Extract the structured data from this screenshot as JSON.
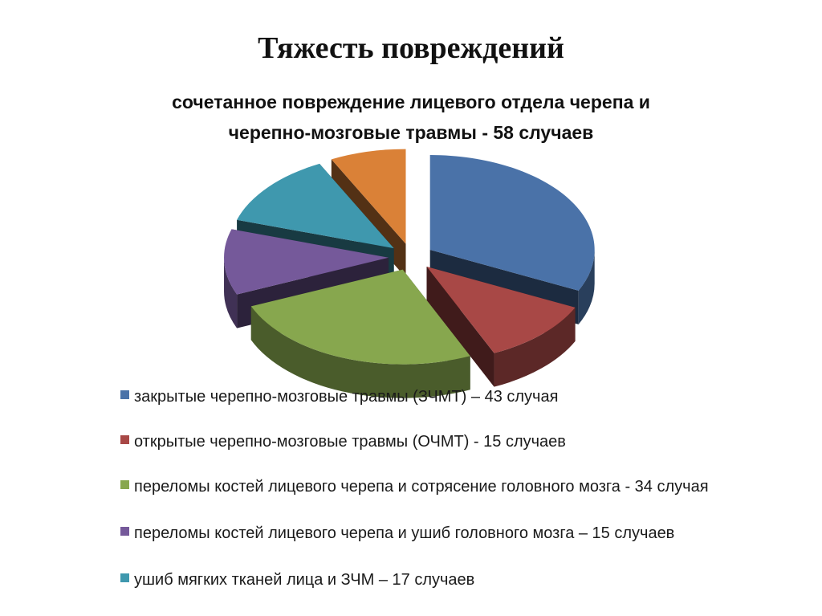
{
  "slide": {
    "title": "Тяжесть повреждений",
    "subtitle_line1": "сочетанное повреждение лицевого отдела черепа и",
    "subtitle_line2": "черепно-мозговые травмы - 58 случаев"
  },
  "legend": [
    {
      "label": "закрытые черепно-мозговые травмы (ЗЧМТ) – 43 случая",
      "color": "#4A72A8"
    },
    {
      "label": "открытые черепно-мозговые травмы (ОЧМТ) - 15 случаев",
      "color": "#A84846"
    },
    {
      "label": "переломы костей лицевого черепа и сотрясение головного мозга - 34 случая",
      "color": "#87A74E"
    },
    {
      "label": "переломы костей лицевого черепа и ушиб головного мозга – 15 случаев",
      "color": "#75599A"
    },
    {
      "label": "ушиб мягких тканей лица и ЗЧМ – 17 случаев",
      "color": "#3F98AE"
    }
  ],
  "chart_data": {
    "type": "pie",
    "title": "Тяжесть повреждений",
    "subtitle": "сочетанное повреждение лицевого отдела черепа и черепно-мозговые травмы - 58 случаев",
    "style": "3d-exploded",
    "categories": [
      "закрытые черепно-мозговые травмы (ЗЧМТ)",
      "открытые черепно-мозговые травмы (ОЧМТ)",
      "переломы костей лицевого черепа и сотрясение головного мозга",
      "переломы костей лицевого черепа и ушиб головного мозга",
      "ушиб мягких тканей лица и ЗЧМ",
      "(unlabeled)"
    ],
    "values": [
      43,
      15,
      34,
      15,
      17,
      10
    ],
    "colors": [
      "#4A72A8",
      "#A84846",
      "#87A74E",
      "#75599A",
      "#3F98AE",
      "#DA8137"
    ],
    "legend_position": "bottom",
    "note": "sixth (orange) slice has no legend entry; value estimated from slice size"
  }
}
